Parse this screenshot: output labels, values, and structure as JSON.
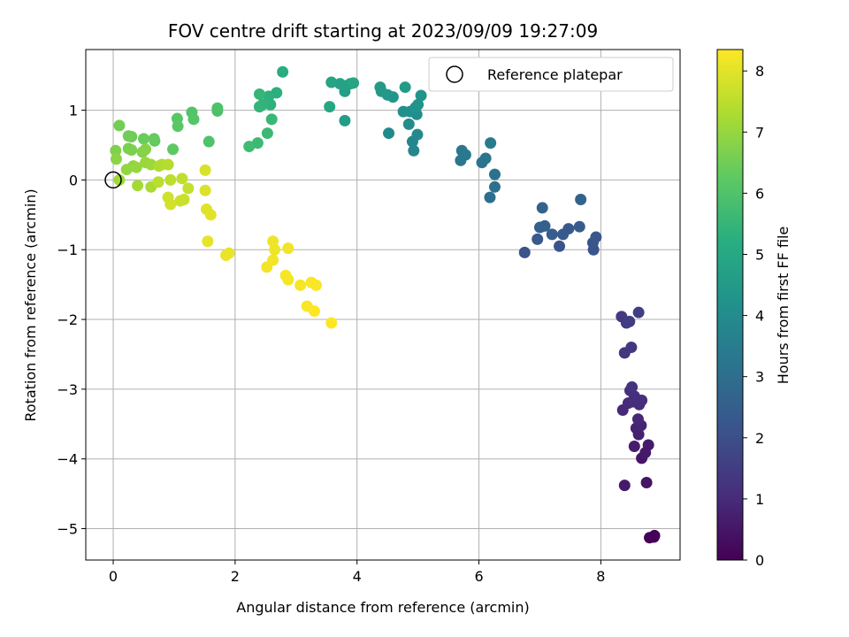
{
  "chart_data": {
    "type": "scatter",
    "title": "FOV centre drift starting at 2023/09/09 19:27:09",
    "xlabel": "Angular distance from reference (arcmin)",
    "ylabel": "Rotation from reference (arcmin)",
    "xlim": [
      -0.45,
      9.3
    ],
    "ylim": [
      -5.45,
      1.87
    ],
    "xticks": [
      0,
      2,
      4,
      6,
      8
    ],
    "yticks": [
      -5,
      -4,
      -3,
      -2,
      -1,
      0,
      1
    ],
    "grid": true,
    "legend": {
      "label": "Reference platepar",
      "placement": "top-right"
    },
    "reference_point": {
      "x": 0,
      "y": 0
    },
    "colorbar": {
      "label": "Hours from first FF file",
      "colormap": "viridis",
      "range": [
        0,
        8.35
      ],
      "ticks": [
        0,
        1,
        2,
        3,
        4,
        5,
        6,
        7,
        8
      ]
    },
    "points": [
      [
        8.8,
        -5.13,
        0.05
      ],
      [
        8.87,
        -5.12,
        0.05
      ],
      [
        8.88,
        -5.1,
        0.05
      ],
      [
        8.75,
        -4.34,
        0.45
      ],
      [
        8.39,
        -4.38,
        0.6
      ],
      [
        8.67,
        -3.99,
        0.5
      ],
      [
        8.73,
        -3.91,
        0.6
      ],
      [
        8.78,
        -3.8,
        0.6
      ],
      [
        8.55,
        -3.82,
        0.65
      ],
      [
        8.62,
        -3.65,
        0.75
      ],
      [
        8.58,
        -3.56,
        0.8
      ],
      [
        8.66,
        -3.52,
        0.85
      ],
      [
        8.61,
        -3.43,
        0.9
      ],
      [
        8.36,
        -3.3,
        0.95
      ],
      [
        8.45,
        -3.2,
        1.0
      ],
      [
        8.53,
        -3.18,
        1.05
      ],
      [
        8.63,
        -3.22,
        1.05
      ],
      [
        8.67,
        -3.16,
        1.1
      ],
      [
        8.55,
        -3.1,
        1.1
      ],
      [
        8.48,
        -3.02,
        1.15
      ],
      [
        8.51,
        -2.97,
        1.2
      ],
      [
        8.39,
        -2.48,
        1.3
      ],
      [
        8.5,
        -2.4,
        1.35
      ],
      [
        8.34,
        -1.96,
        1.4
      ],
      [
        8.42,
        -2.05,
        1.45
      ],
      [
        8.47,
        -2.03,
        1.5
      ],
      [
        8.62,
        -1.9,
        1.55
      ],
      [
        6.75,
        -1.04,
        2.1
      ],
      [
        7.32,
        -0.95,
        2.15
      ],
      [
        7.88,
        -1.0,
        2.2
      ],
      [
        7.87,
        -0.9,
        2.2
      ],
      [
        7.92,
        -0.82,
        2.25
      ],
      [
        6.96,
        -0.85,
        2.3
      ],
      [
        7.38,
        -0.78,
        2.35
      ],
      [
        7.47,
        -0.7,
        2.35
      ],
      [
        7.65,
        -0.67,
        2.4
      ],
      [
        7.2,
        -0.78,
        2.45
      ],
      [
        7.0,
        -0.68,
        2.5
      ],
      [
        7.08,
        -0.66,
        2.55
      ],
      [
        7.04,
        -0.4,
        2.6
      ],
      [
        7.67,
        -0.28,
        2.65
      ],
      [
        6.18,
        -0.25,
        3.0
      ],
      [
        6.26,
        -0.1,
        3.05
      ],
      [
        6.26,
        0.08,
        3.1
      ],
      [
        6.05,
        0.25,
        3.15
      ],
      [
        6.11,
        0.31,
        3.2
      ],
      [
        5.7,
        0.28,
        3.25
      ],
      [
        5.72,
        0.42,
        3.3
      ],
      [
        5.78,
        0.36,
        3.35
      ],
      [
        6.19,
        0.53,
        3.4
      ],
      [
        4.93,
        0.42,
        3.8
      ],
      [
        4.91,
        0.55,
        3.85
      ],
      [
        4.99,
        0.65,
        3.9
      ],
      [
        4.52,
        0.67,
        3.95
      ],
      [
        4.85,
        0.8,
        4.0
      ],
      [
        4.98,
        0.94,
        4.05
      ],
      [
        4.76,
        0.98,
        4.1
      ],
      [
        4.87,
        0.98,
        4.15
      ],
      [
        4.96,
        1.04,
        4.2
      ],
      [
        5.0,
        1.08,
        4.25
      ],
      [
        5.05,
        1.21,
        4.3
      ],
      [
        4.59,
        1.19,
        4.35
      ],
      [
        4.5,
        1.22,
        4.4
      ],
      [
        4.4,
        1.27,
        4.45
      ],
      [
        4.38,
        1.33,
        4.5
      ],
      [
        4.79,
        1.33,
        4.55
      ],
      [
        3.8,
        0.85,
        4.6
      ],
      [
        3.8,
        1.27,
        4.65
      ],
      [
        3.81,
        1.35,
        4.7
      ],
      [
        3.89,
        1.38,
        4.75
      ],
      [
        3.72,
        1.38,
        4.8
      ],
      [
        3.58,
        1.4,
        4.85
      ],
      [
        3.94,
        1.39,
        4.9
      ],
      [
        3.55,
        1.05,
        4.95
      ],
      [
        2.78,
        1.55,
        5.2
      ],
      [
        2.68,
        1.25,
        5.25
      ],
      [
        2.55,
        1.2,
        5.3
      ],
      [
        2.58,
        1.08,
        5.35
      ],
      [
        2.45,
        1.08,
        5.4
      ],
      [
        2.4,
        1.05,
        5.45
      ],
      [
        2.4,
        1.23,
        5.5
      ],
      [
        2.6,
        0.87,
        5.55
      ],
      [
        2.53,
        0.67,
        5.6
      ],
      [
        2.37,
        0.53,
        5.65
      ],
      [
        2.23,
        0.48,
        5.7
      ],
      [
        1.71,
        0.99,
        5.9
      ],
      [
        1.71,
        1.03,
        5.95
      ],
      [
        1.57,
        0.55,
        6.0
      ],
      [
        1.29,
        0.97,
        6.05
      ],
      [
        1.32,
        0.87,
        6.1
      ],
      [
        1.05,
        0.88,
        6.15
      ],
      [
        1.06,
        0.77,
        6.2
      ],
      [
        0.98,
        0.44,
        6.25
      ],
      [
        0.68,
        0.56,
        6.3
      ],
      [
        0.67,
        0.59,
        6.35
      ],
      [
        0.5,
        0.59,
        6.4
      ],
      [
        0.3,
        0.62,
        6.45
      ],
      [
        0.25,
        0.63,
        6.5
      ],
      [
        0.1,
        0.78,
        6.55
      ],
      [
        0.25,
        0.45,
        6.6
      ],
      [
        0.3,
        0.43,
        6.65
      ],
      [
        0.04,
        0.42,
        6.7
      ],
      [
        0.48,
        0.4,
        6.75
      ],
      [
        0.53,
        0.44,
        6.8
      ],
      [
        0.05,
        0.3,
        6.85
      ],
      [
        0.33,
        0.2,
        6.9
      ],
      [
        0.22,
        0.15,
        6.95
      ],
      [
        0.38,
        0.18,
        7.0
      ],
      [
        0.53,
        0.25,
        7.05
      ],
      [
        0.62,
        0.22,
        7.1
      ],
      [
        0.1,
        0.0,
        7.15
      ],
      [
        0.4,
        -0.08,
        7.2
      ],
      [
        0.62,
        -0.1,
        7.25
      ],
      [
        0.75,
        0.2,
        7.3
      ],
      [
        0.8,
        0.22,
        7.35
      ],
      [
        0.9,
        0.22,
        7.4
      ],
      [
        0.74,
        -0.03,
        7.45
      ],
      [
        0.94,
        0.0,
        7.5
      ],
      [
        1.13,
        0.02,
        7.55
      ],
      [
        1.23,
        -0.12,
        7.6
      ],
      [
        1.16,
        -0.28,
        7.65
      ],
      [
        1.1,
        -0.3,
        7.7
      ],
      [
        0.9,
        -0.25,
        7.75
      ],
      [
        0.94,
        -0.35,
        7.8
      ],
      [
        1.51,
        0.14,
        7.85
      ],
      [
        1.51,
        -0.15,
        7.9
      ],
      [
        1.53,
        -0.42,
        7.95
      ],
      [
        1.6,
        -0.5,
        8.0
      ],
      [
        1.55,
        -0.88,
        8.05
      ],
      [
        1.85,
        -1.08,
        8.1
      ],
      [
        1.9,
        -1.05,
        8.1
      ],
      [
        2.62,
        -0.88,
        8.15
      ],
      [
        2.65,
        -1.0,
        8.15
      ],
      [
        2.87,
        -0.98,
        8.2
      ],
      [
        2.62,
        -1.15,
        8.2
      ],
      [
        2.52,
        -1.25,
        8.2
      ],
      [
        2.83,
        -1.37,
        8.25
      ],
      [
        2.87,
        -1.43,
        8.25
      ],
      [
        3.07,
        -1.51,
        8.25
      ],
      [
        3.25,
        -1.47,
        8.3
      ],
      [
        3.33,
        -1.51,
        8.3
      ],
      [
        3.18,
        -1.81,
        8.3
      ],
      [
        3.3,
        -1.88,
        8.35
      ],
      [
        3.58,
        -2.05,
        8.35
      ]
    ]
  }
}
